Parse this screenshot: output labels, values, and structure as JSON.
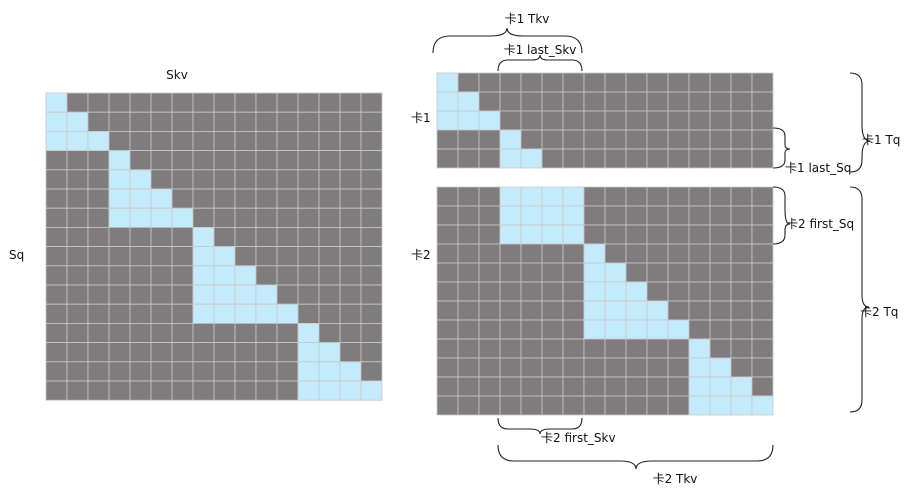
{
  "colors": {
    "masked": "#7f7c7e",
    "visible": "#c4eafb",
    "grid": "#c8c8c8"
  },
  "left_matrix": {
    "top_label": "Skv",
    "side_label": "Sq",
    "size": 16,
    "visible_runs": [
      [
        0,
        0
      ],
      [
        0,
        1
      ],
      [
        0,
        2
      ],
      [
        3,
        3
      ],
      [
        3,
        4
      ],
      [
        3,
        5
      ],
      [
        3,
        6
      ],
      [
        7,
        7
      ],
      [
        7,
        8
      ],
      [
        7,
        9
      ],
      [
        7,
        10
      ],
      [
        7,
        11
      ],
      [
        12,
        12
      ],
      [
        12,
        13
      ],
      [
        12,
        14
      ],
      [
        12,
        15
      ]
    ]
  },
  "right_top": {
    "rows": 5,
    "cols": 16,
    "visible_runs": [
      [
        0,
        0
      ],
      [
        0,
        1
      ],
      [
        0,
        2
      ],
      [
        3,
        3
      ],
      [
        3,
        4
      ]
    ],
    "side_label": "卡1"
  },
  "right_bottom": {
    "rows": 12,
    "cols": 16,
    "visible_runs": [
      [
        3,
        6
      ],
      [
        3,
        6
      ],
      [
        3,
        6
      ],
      [
        7,
        7
      ],
      [
        7,
        8
      ],
      [
        7,
        9
      ],
      [
        7,
        10
      ],
      [
        7,
        11
      ],
      [
        12,
        12
      ],
      [
        12,
        13
      ],
      [
        12,
        14
      ],
      [
        12,
        15
      ]
    ],
    "side_label": "卡2"
  },
  "annotations": {
    "card1_tkv": "卡1 Tkv",
    "card1_last_skv": "卡1 last_Skv",
    "card1_tq": "卡1 Tq",
    "card1_last_sq": "卡1 last_Sq",
    "card2_first_sq": "卡2 first_Sq",
    "card2_tq": "卡2 Tq",
    "card2_first_skv": "卡2  first_Skv",
    "card2_tkv": "卡2 Tkv"
  }
}
